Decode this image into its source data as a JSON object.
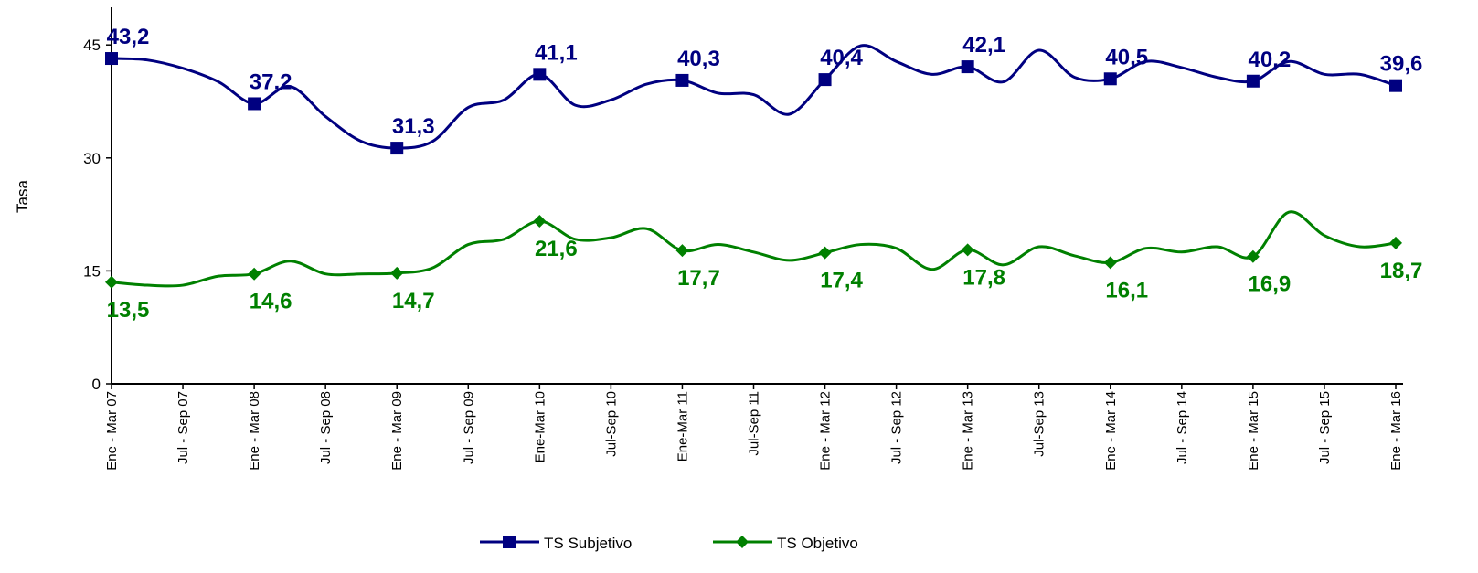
{
  "chart_data": {
    "type": "line",
    "y_label": "Tasa",
    "categories": [
      "Ene - Mar 07",
      null,
      "Jul - Sep 07",
      null,
      "Ene - Mar 08",
      null,
      "Jul - Sep 08",
      null,
      "Ene - Mar 09",
      null,
      "Jul - Sep 09",
      null,
      "Ene-Mar 10",
      null,
      "Jul-Sep 10",
      null,
      "Ene-Mar 11",
      null,
      "Jul-Sep 11",
      null,
      "Ene - Mar 12",
      null,
      "Jul - Sep 12",
      null,
      "Ene - Mar 13",
      null,
      "Jul-Sep 13",
      null,
      "Ene - Mar 14",
      null,
      "Jul - Sep 14",
      null,
      "Ene - Mar 15",
      null,
      "Jul - Sep 15",
      null,
      "Ene - Mar 16"
    ],
    "series": [
      {
        "name": "TS Subjetivo",
        "color": "#000080",
        "marker": "square",
        "values": [
          43.2,
          43.0,
          41.9,
          40.1,
          37.2,
          39.5,
          35.5,
          32.2,
          31.3,
          32.2,
          36.7,
          37.7,
          41.1,
          37.0,
          37.7,
          39.8,
          40.3,
          38.6,
          38.4,
          35.8,
          40.4,
          44.9,
          42.8,
          41.1,
          42.1,
          40.1,
          44.3,
          40.7,
          40.5,
          42.8,
          42.0,
          40.7,
          40.2,
          42.8,
          41.1,
          41.1,
          39.6
        ],
        "value_labels": [
          "43,2",
          null,
          null,
          null,
          "37,2",
          null,
          null,
          null,
          "31,3",
          null,
          null,
          null,
          "41,1",
          null,
          null,
          null,
          "40,3",
          null,
          null,
          null,
          "40,4",
          null,
          null,
          null,
          "42,1",
          null,
          null,
          null,
          "40,5",
          null,
          null,
          null,
          "40,2",
          null,
          null,
          null,
          "39,6"
        ]
      },
      {
        "name": "TS Objetivo",
        "color": "#008000",
        "marker": "diamond",
        "values": [
          13.5,
          13.1,
          13.1,
          14.3,
          14.6,
          16.3,
          14.6,
          14.6,
          14.7,
          15.4,
          18.5,
          19.2,
          21.6,
          19.2,
          19.4,
          20.6,
          17.7,
          18.5,
          17.5,
          16.4,
          17.4,
          18.5,
          18.0,
          15.2,
          17.8,
          15.8,
          18.2,
          17.0,
          16.1,
          18.0,
          17.5,
          18.2,
          16.9,
          22.8,
          19.7,
          18.2,
          18.7
        ],
        "value_labels": [
          "13,5",
          null,
          null,
          null,
          "14,6",
          null,
          null,
          null,
          "14,7",
          null,
          null,
          null,
          "21,6",
          null,
          null,
          null,
          "17,7",
          null,
          null,
          null,
          "17,4",
          null,
          null,
          null,
          "17,8",
          null,
          null,
          null,
          "16,1",
          null,
          null,
          null,
          "16,9",
          null,
          null,
          null,
          "18,7"
        ]
      }
    ],
    "ylim": [
      0,
      50
    ],
    "yticks": [
      0,
      15,
      30,
      45
    ],
    "legend": "bottom"
  }
}
